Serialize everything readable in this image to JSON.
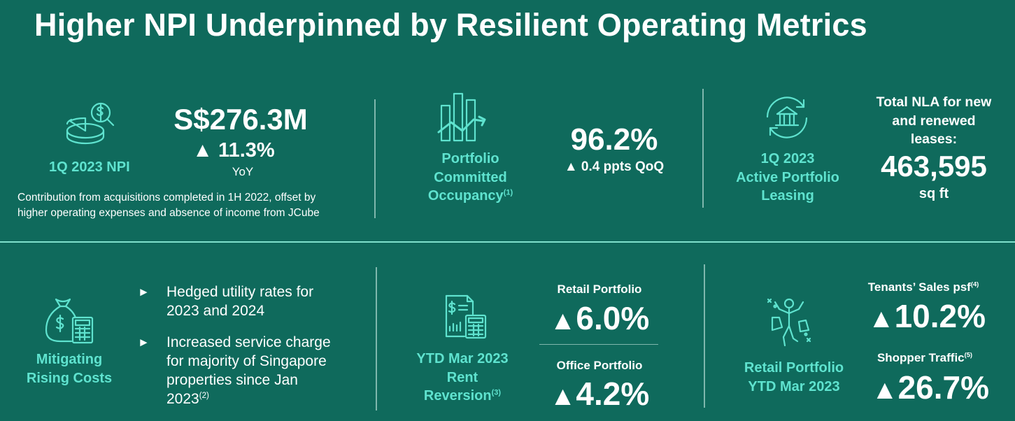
{
  "title": "Higher NPI Underpinned by Resilient Operating Metrics",
  "npi": {
    "label": "1Q 2023 NPI",
    "value": "S$276.3M",
    "change": "▲ 11.3%",
    "change_unit": "YoY",
    "note_line1": "Contribution from acquisitions completed in 1H 2022, offset by",
    "note_line2": "higher operating expenses and absence of income from JCube",
    "icon": "money-pie-search-icon"
  },
  "occupancy": {
    "label_line1": "Portfolio",
    "label_line2": "Committed",
    "label_line3": "Occupancy",
    "footnote": "(1)",
    "value": "96.2%",
    "change": "▲ 0.4 ppts QoQ",
    "icon": "bar-chart-trend-icon"
  },
  "leasing": {
    "label_line1": "1Q 2023",
    "label_line2": "Active Portfolio",
    "label_line3": "Leasing",
    "desc_line1": "Total NLA for new",
    "desc_line2": "and renewed",
    "desc_line3": "leases:",
    "value": "463,595",
    "unit": "sq ft",
    "icon": "building-cycle-icon"
  },
  "costs": {
    "label_line1": "Mitigating",
    "label_line2": "Rising Costs",
    "icon": "money-bag-calculator-icon",
    "bullet_glyph": "►",
    "bullets": [
      {
        "line1": "Hedged utility rates for",
        "line2": "2023 and 2024"
      },
      {
        "line1": "Increased service charge",
        "line2": "for majority of Singapore",
        "line3": "properties since Jan",
        "line4": "2023",
        "footnote": "(2)"
      }
    ]
  },
  "rent": {
    "label_line1": "YTD Mar 2023",
    "label_line2": "Rent",
    "label_line3": "Reversion",
    "footnote": "(3)",
    "retail_label": "Retail Portfolio",
    "retail_value": "6.0%",
    "office_label": "Office Portfolio",
    "office_value": "4.2%",
    "triangle": "▲",
    "icon": "invoice-calculator-icon"
  },
  "retail": {
    "label_line1": "Retail Portfolio",
    "label_line2": "YTD Mar 2023",
    "sales_label": "Tenants’ Sales psf",
    "sales_footnote": "(4)",
    "sales_value": "10.2%",
    "traffic_label": "Shopper Traffic",
    "traffic_footnote": "(5)",
    "traffic_value": "26.7%",
    "triangle": "▲",
    "icon": "shopper-bags-icon"
  },
  "colors": {
    "background": "#0f6a5c",
    "accent": "#5fe3cf",
    "text": "#ffffff"
  }
}
